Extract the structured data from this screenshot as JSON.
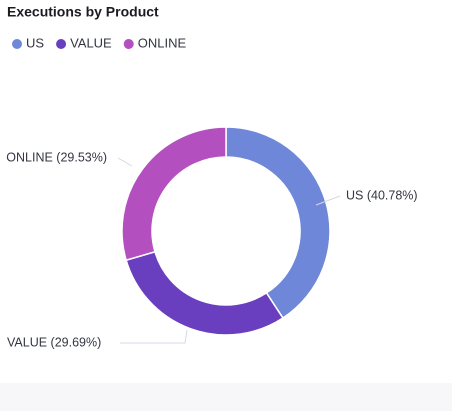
{
  "chart_data": {
    "type": "donut",
    "title": "Executions by Product",
    "categories": [
      "US",
      "VALUE",
      "ONLINE"
    ],
    "values": [
      40.78,
      29.69,
      29.53
    ],
    "value_labels": [
      "US (40.78%)",
      "VALUE (29.69%)",
      "ONLINE (29.53%)"
    ],
    "colors": [
      "#6f87d8",
      "#6a3fbf",
      "#b44fbf"
    ],
    "legend": "top-left"
  }
}
